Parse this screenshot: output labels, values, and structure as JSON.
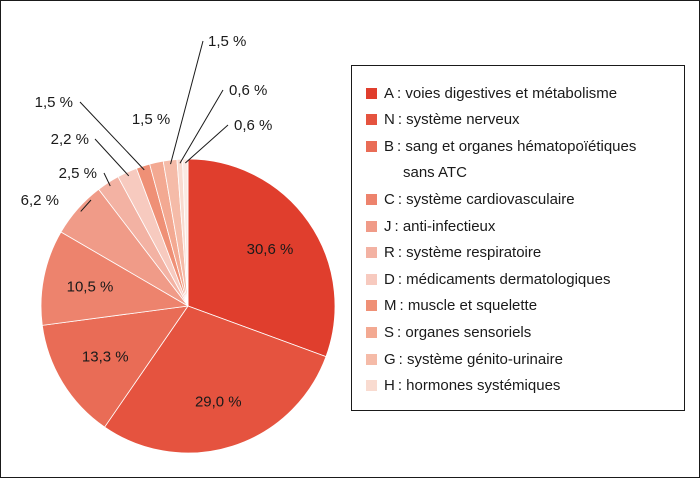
{
  "chart_data": {
    "type": "pie",
    "start_angle_deg": 0,
    "direction": "clockwise",
    "slices": [
      {
        "code": "A",
        "label": ": voies digestives et métabolisme",
        "value": 30.6,
        "value_label": "30,6 %",
        "color": "#e03e2d",
        "label_placement": "inside"
      },
      {
        "code": "N",
        "label": ": système nerveux",
        "value": 29.0,
        "value_label": "29,0 %",
        "color": "#e5533f",
        "label_placement": "inside"
      },
      {
        "code": "B",
        "label": ": sang et organes hématopoïétiques",
        "label_cont": "sans ATC",
        "value": 13.3,
        "value_label": "13,3 %",
        "color": "#e96c56",
        "label_placement": "inside"
      },
      {
        "code": "C",
        "label": ": système cardiovasculaire",
        "value": 10.5,
        "value_label": "10,5 %",
        "color": "#ed836d",
        "label_placement": "inside"
      },
      {
        "code": "J",
        "label": ": anti-infectieux",
        "value": 6.2,
        "value_label": "6,2 %",
        "color": "#f09b88",
        "label_placement": "outside"
      },
      {
        "code": "R",
        "label": ": système respiratoire",
        "value": 2.5,
        "value_label": "2,5 %",
        "color": "#f3b2a3",
        "label_placement": "outside"
      },
      {
        "code": "D",
        "label": ": médicaments dermatologiques",
        "value": 2.2,
        "value_label": "2,2 %",
        "color": "#f7cabf",
        "label_placement": "outside"
      },
      {
        "code": "M",
        "label": ": muscle et squelette",
        "value": 1.5,
        "value_label": "1,5 %",
        "color": "#ef9076",
        "label_placement": "outside"
      },
      {
        "code": "S",
        "label": ": organes sensoriels",
        "value": 1.5,
        "value_label": "1,5 %",
        "color": "#f3a992",
        "label_placement": "outside"
      },
      {
        "code": "G",
        "label": ": système génito-urinaire",
        "value": 1.5,
        "value_label": "1,5 %",
        "color": "#f5bba8",
        "label_placement": "outside"
      },
      {
        "code": "H",
        "label": ": hormones systémiques",
        "value": 0.6,
        "value_label": "0,6 %",
        "color": "#f9dbd0",
        "label_placement": "outside"
      },
      {
        "code": "",
        "label": "",
        "value": 0.6,
        "value_label": "0,6 %",
        "color": "#fbe9e2",
        "label_placement": "outside"
      }
    ],
    "legend_placement": "right"
  }
}
